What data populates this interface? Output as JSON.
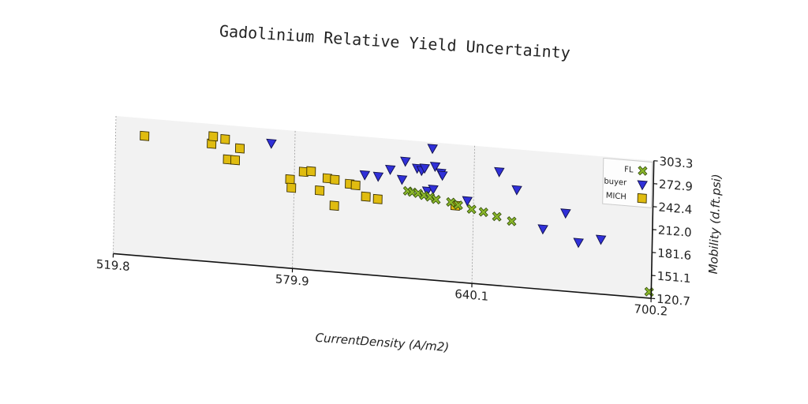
{
  "chart_data": {
    "type": "scatter",
    "title": "Gadolinium Relative Yield Uncertainty",
    "xlabel": "CurrentDensity (A/m2)",
    "ylabel": "Mobility (d.ft.psi)",
    "xlim": [
      519.8,
      700.2
    ],
    "ylim": [
      120.7,
      303.3
    ],
    "x_ticks": [
      "519.8",
      "579.9",
      "640.1",
      "700.2"
    ],
    "y_ticks": [
      "120.7",
      "151.1",
      "181.6",
      "212.0",
      "242.4",
      "272.9",
      "303.3"
    ],
    "grid": "vertical dashed",
    "legend_position": "upper-right",
    "series": [
      {
        "name": "FL",
        "marker": "x-filled",
        "color": "#8ab62a",
        "points": [
          [
            618.0,
            236.0
          ],
          [
            619.5,
            235.0
          ],
          [
            621.5,
            234.0
          ],
          [
            623.5,
            232.0
          ],
          [
            625.5,
            230.5
          ],
          [
            627.5,
            228.0
          ],
          [
            632.5,
            226.0
          ],
          [
            635.0,
            223.0
          ],
          [
            639.5,
            219.0
          ],
          [
            643.5,
            216.5
          ],
          [
            648.0,
            212.0
          ],
          [
            653.0,
            207.5
          ],
          [
            699.5,
            129.0
          ]
        ]
      },
      {
        "name": "buyer",
        "marker": "triangle-down",
        "color": "#3030d8",
        "points": [
          [
            572.0,
            284.0
          ],
          [
            603.5,
            252.5
          ],
          [
            608.0,
            252.0
          ],
          [
            612.0,
            262.5
          ],
          [
            616.0,
            250.5
          ],
          [
            617.0,
            275.0
          ],
          [
            621.0,
            267.0
          ],
          [
            622.5,
            264.5
          ],
          [
            623.5,
            268.0
          ],
          [
            624.5,
            238.0
          ],
          [
            626.0,
            295.0
          ],
          [
            626.5,
            241.0
          ],
          [
            627.0,
            271.5
          ],
          [
            629.0,
            263.5
          ],
          [
            629.5,
            260.5
          ],
          [
            638.0,
            229.5
          ],
          [
            648.5,
            271.5
          ],
          [
            654.5,
            249.5
          ],
          [
            663.5,
            200.5
          ],
          [
            671.0,
            224.0
          ],
          [
            675.5,
            186.5
          ],
          [
            683.0,
            193.0
          ]
        ]
      },
      {
        "name": "MICH",
        "marker": "square",
        "color": "#e0bc10",
        "points": [
          [
            529.5,
            280.0
          ],
          [
            552.0,
            277.0
          ],
          [
            552.5,
            287.0
          ],
          [
            556.5,
            284.5
          ],
          [
            557.5,
            258.0
          ],
          [
            560.0,
            258.0
          ],
          [
            561.5,
            274.0
          ],
          [
            578.5,
            238.5
          ],
          [
            579.0,
            227.5
          ],
          [
            583.0,
            250.0
          ],
          [
            585.5,
            251.5
          ],
          [
            588.5,
            227.0
          ],
          [
            591.0,
            244.0
          ],
          [
            593.5,
            243.0
          ],
          [
            593.5,
            208.5
          ],
          [
            598.5,
            239.0
          ],
          [
            600.5,
            238.0
          ],
          [
            604.0,
            224.0
          ],
          [
            608.0,
            222.0
          ],
          [
            634.0,
            222.0
          ]
        ]
      }
    ]
  }
}
